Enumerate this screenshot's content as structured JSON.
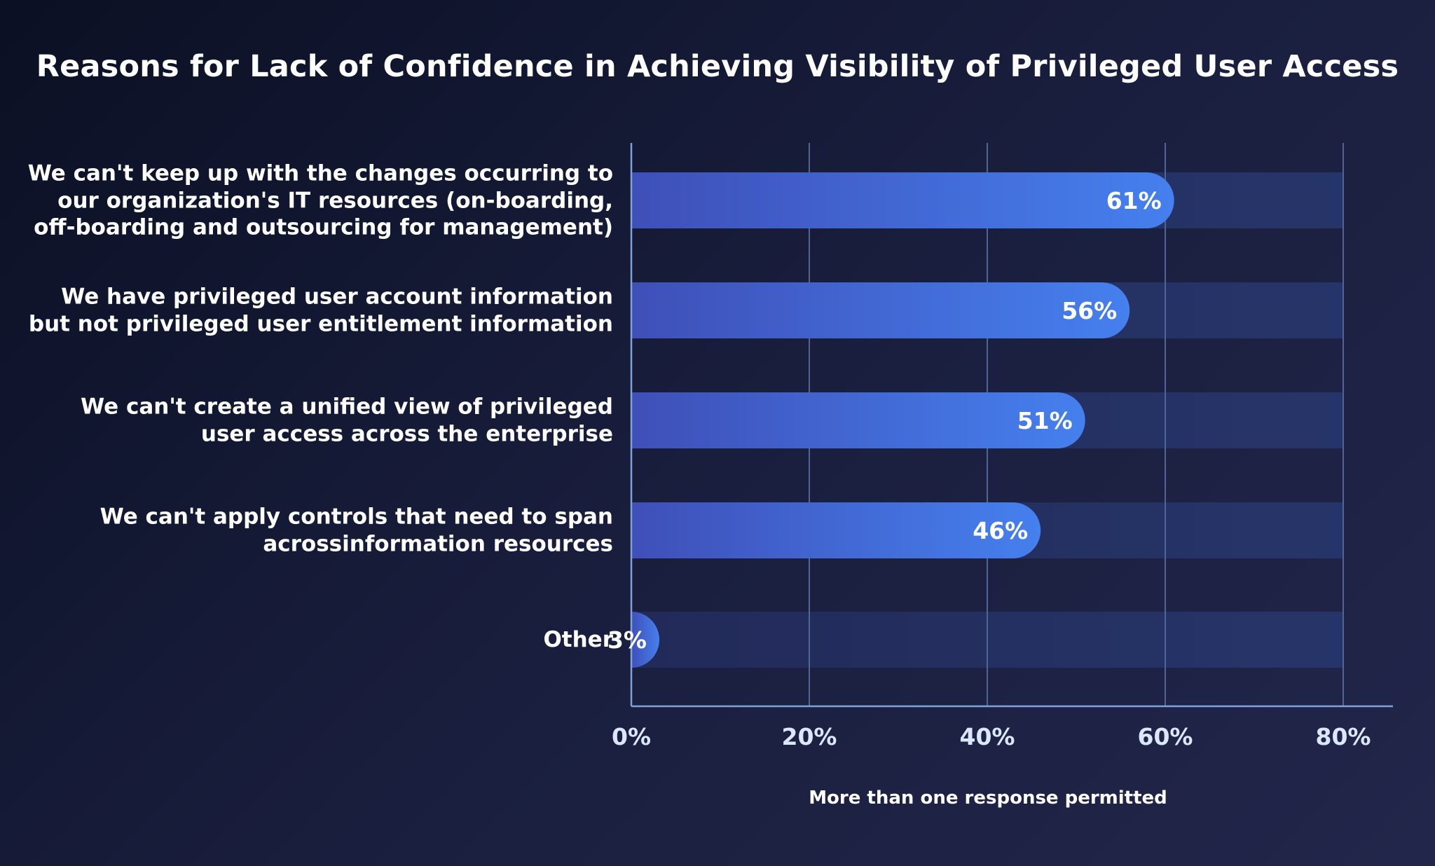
{
  "chart_data": {
    "type": "bar",
    "orientation": "horizontal",
    "title": "Reasons for Lack of Confidence in Achieving Visibility of Privileged User Access",
    "categories": [
      "We can't keep up with the changes occurring to our organization's IT resources (on-boarding, off-boarding and outsourcing for management)",
      "We have privileged user account information but not privileged user entitlement information",
      "We can't create a unified view of privileged user access across the enterprise",
      "We can't apply controls that need to span acrossinformation resources",
      "Other"
    ],
    "values": [
      61,
      56,
      51,
      46,
      3
    ],
    "value_labels": [
      "61%",
      "56%",
      "51%",
      "46%",
      "3%"
    ],
    "xlim": [
      0,
      80
    ],
    "xticks": [
      0,
      20,
      40,
      60,
      80
    ],
    "xtick_labels": [
      "0%",
      "20%",
      "40%",
      "60%",
      "80%"
    ],
    "note": "More than one response permitted",
    "grid": true,
    "legend": "none",
    "colors": {
      "bar_start": "#3f4fb8",
      "bar_end": "#4580ee",
      "track": "#263569",
      "grid": "#4e6596",
      "axis": "#7fa2d8"
    }
  }
}
